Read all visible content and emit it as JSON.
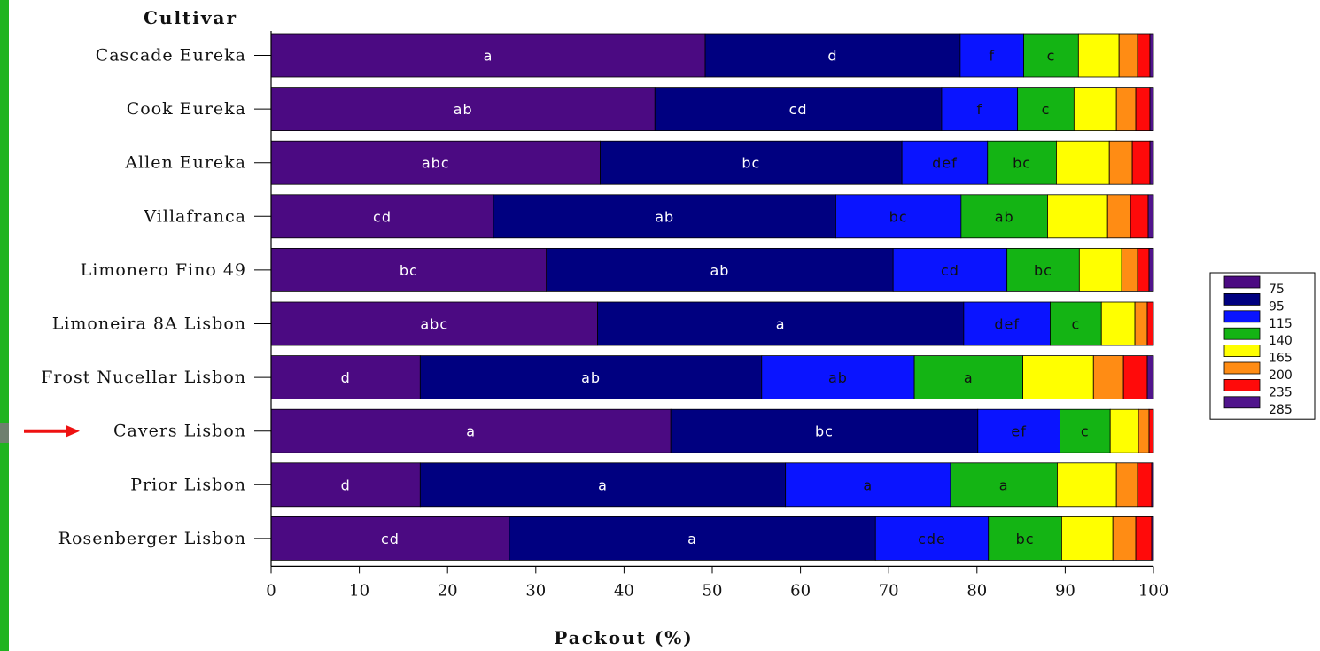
{
  "chart_data": {
    "type": "bar",
    "orientation": "horizontal",
    "stacked": true,
    "title": "Cultivar",
    "xlabel": "Packout (%)",
    "ylabel": "Cultivar",
    "xlim": [
      0,
      100
    ],
    "xticks": [
      0,
      10,
      20,
      30,
      40,
      50,
      60,
      70,
      80,
      90,
      100
    ],
    "legend_position": "right",
    "highlighted_category": "Cavers Lisbon",
    "categories": [
      "Cascade Eureka",
      "Cook Eureka",
      "Allen Eureka",
      "Villafranca",
      "Limonero Fino 49",
      "Limoneira 8A Lisbon",
      "Frost Nucellar Lisbon",
      "Cavers Lisbon",
      "Prior Lisbon",
      "Rosenberger Lisbon"
    ],
    "series": [
      {
        "name": "75",
        "color": "#4b0a82",
        "label_color": "#ffffff",
        "values": [
          49.2,
          43.5,
          37.3,
          25.2,
          31.2,
          37.0,
          16.9,
          45.3,
          16.9,
          27.0
        ],
        "labels": [
          "a",
          "ab",
          "abc",
          "cd",
          "bc",
          "abc",
          "d",
          "a",
          "d",
          "cd"
        ]
      },
      {
        "name": "95",
        "color": "#000080",
        "label_color": "#ffffff",
        "values": [
          28.9,
          32.5,
          34.2,
          38.8,
          39.3,
          41.5,
          38.7,
          34.8,
          41.4,
          41.5
        ],
        "labels": [
          "d",
          "cd",
          "bc",
          "ab",
          "ab",
          "a",
          "ab",
          "bc",
          "a",
          "a"
        ]
      },
      {
        "name": "115",
        "color": "#0a14ff",
        "label_color": "#111111",
        "values": [
          7.2,
          8.6,
          9.7,
          14.2,
          12.9,
          9.8,
          17.3,
          9.3,
          18.7,
          12.8
        ],
        "labels": [
          "f",
          "f",
          "def",
          "bc",
          "cd",
          "def",
          "ab",
          "ef",
          "a",
          "cde"
        ]
      },
      {
        "name": "140",
        "color": "#14b414",
        "label_color": "#111111",
        "values": [
          6.2,
          6.4,
          7.8,
          9.8,
          8.2,
          5.8,
          12.3,
          5.7,
          12.1,
          8.3
        ],
        "labels": [
          "c",
          "c",
          "bc",
          "ab",
          "bc",
          "c",
          "a",
          "c",
          "a",
          "bc"
        ]
      },
      {
        "name": "165",
        "color": "#ffff00",
        "label_color": "#111111",
        "values": [
          4.6,
          4.8,
          6.0,
          6.8,
          4.8,
          3.8,
          8.0,
          3.2,
          6.7,
          5.8
        ],
        "labels": [
          "",
          "",
          "",
          "",
          "",
          "",
          "",
          "",
          "",
          ""
        ]
      },
      {
        "name": "200",
        "color": "#ff8c14",
        "label_color": "#111111",
        "values": [
          2.1,
          2.2,
          2.6,
          2.6,
          1.8,
          1.4,
          3.4,
          1.2,
          2.4,
          2.6
        ],
        "labels": [
          "",
          "",
          "",
          "",
          "",
          "",
          "",
          "",
          "",
          ""
        ]
      },
      {
        "name": "235",
        "color": "#ff0a0a",
        "label_color": "#111111",
        "values": [
          1.4,
          1.6,
          2.0,
          2.0,
          1.3,
          0.7,
          2.7,
          0.5,
          1.6,
          1.8
        ],
        "labels": [
          "",
          "",
          "",
          "",
          "",
          "",
          "",
          "",
          "",
          ""
        ]
      },
      {
        "name": "285",
        "color": "#50148c",
        "label_color": "#111111",
        "values": [
          0.4,
          0.4,
          0.4,
          0.6,
          0.5,
          0.0,
          0.7,
          0.0,
          0.2,
          0.2
        ],
        "labels": [
          "",
          "",
          "",
          "",
          "",
          "",
          "",
          "",
          "",
          ""
        ]
      }
    ]
  }
}
